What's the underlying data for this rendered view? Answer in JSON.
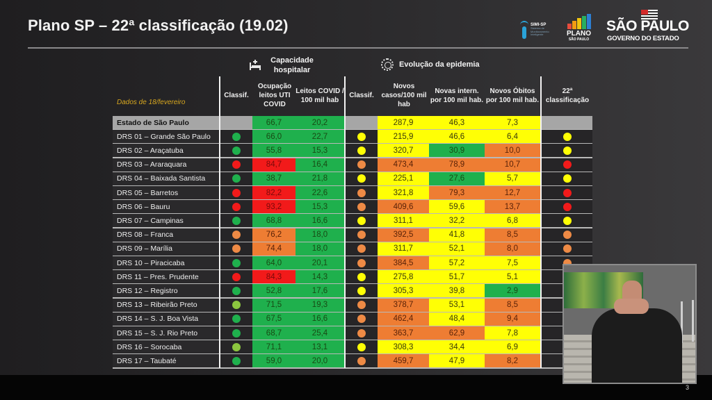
{
  "title": "Plano SP – 22ª classificação (19.02)",
  "logos": {
    "simi": {
      "title": "SIMI-SP",
      "subtitle": "Sistema de Monitoramento Inteligente"
    },
    "plano": {
      "title": "PLANO",
      "subtitle": "SÃO PAULO"
    },
    "sp": {
      "title": "SÃO PAULO",
      "subtitle": "GOVERNO DO ESTADO"
    }
  },
  "sections": {
    "hospital": {
      "label": "Capacidade hospitalar",
      "icon": "hospital-bed-icon"
    },
    "epidemic": {
      "label": "Evolução da epidemia",
      "icon": "virus-icon"
    }
  },
  "dados_label": "Dados de 18/fevereiro",
  "columns": {
    "classif_hosp": "Classif.",
    "ocupacao": "Ocupação leitos UTI COVID",
    "leitos": "Leitos COVID / 100 mil hab",
    "classif_epi": "Classif.",
    "casos": "Novos casos/100 mil hab",
    "intern": "Novas intern. por 100 mil hab.",
    "obitos": "Novos Óbitos por 100 mil hab.",
    "final": "22ª classificação"
  },
  "colors": {
    "green": "#20b04e",
    "red": "#f01616",
    "orange": "#ee7d33",
    "light_green": "#8dc63f",
    "yellow": "#ffff05",
    "grey": "#a6a6a6"
  },
  "rows": [
    {
      "name": "Estado de São Paulo",
      "state": true,
      "c1": "",
      "ocup": "66,7",
      "ocup_c": "green",
      "leit": "20,2",
      "leit_c": "green",
      "c2": "",
      "casos": "287,9",
      "casos_c": "yellow",
      "int": "46,3",
      "int_c": "yellow",
      "obi": "7,3",
      "obi_c": "yellow",
      "fin": ""
    },
    {
      "name": "DRS 01 – Grande São Paulo",
      "c1": "green",
      "ocup": "66,0",
      "ocup_c": "green",
      "leit": "22,7",
      "leit_c": "green",
      "c2": "yellow",
      "casos": "215,9",
      "casos_c": "yellow",
      "int": "46,6",
      "int_c": "yellow",
      "obi": "6,4",
      "obi_c": "yellow",
      "fin": "yellow"
    },
    {
      "name": "DRS 02 – Araçatuba",
      "c1": "green",
      "ocup": "55,8",
      "ocup_c": "green",
      "leit": "15,3",
      "leit_c": "green",
      "c2": "yellow",
      "casos": "320,7",
      "casos_c": "yellow",
      "int": "30,9",
      "int_c": "green",
      "obi": "10,0",
      "obi_c": "orange",
      "fin": "yellow"
    },
    {
      "name": "DRS 03 – Araraquara",
      "c1": "red",
      "ocup": "84,7",
      "ocup_c": "red",
      "leit": "16,4",
      "leit_c": "green",
      "c2": "orange",
      "casos": "473,4",
      "casos_c": "orange",
      "int": "78,9",
      "int_c": "orange",
      "obi": "10,7",
      "obi_c": "orange",
      "fin": "red"
    },
    {
      "name": "DRS 04 – Baixada Santista",
      "c1": "green",
      "ocup": "38,7",
      "ocup_c": "green",
      "leit": "21,8",
      "leit_c": "green",
      "c2": "yellow",
      "casos": "225,1",
      "casos_c": "yellow",
      "int": "27,6",
      "int_c": "green",
      "obi": "5,7",
      "obi_c": "yellow",
      "fin": "yellow"
    },
    {
      "name": "DRS 05 – Barretos",
      "c1": "red",
      "ocup": "82,2",
      "ocup_c": "red",
      "leit": "22,6",
      "leit_c": "green",
      "c2": "orange",
      "casos": "321,8",
      "casos_c": "yellow",
      "int": "79,3",
      "int_c": "orange",
      "obi": "12,7",
      "obi_c": "orange",
      "fin": "red"
    },
    {
      "name": "DRS 06 – Bauru",
      "c1": "red",
      "ocup": "93,2",
      "ocup_c": "red",
      "leit": "15,3",
      "leit_c": "green",
      "c2": "orange",
      "casos": "409,6",
      "casos_c": "orange",
      "int": "59,6",
      "int_c": "yellow",
      "obi": "13,7",
      "obi_c": "orange",
      "fin": "red"
    },
    {
      "name": "DRS 07 – Campinas",
      "c1": "green",
      "ocup": "68,8",
      "ocup_c": "green",
      "leit": "16,6",
      "leit_c": "green",
      "c2": "yellow",
      "casos": "311,1",
      "casos_c": "yellow",
      "int": "32,2",
      "int_c": "yellow",
      "obi": "6,8",
      "obi_c": "yellow",
      "fin": "yellow"
    },
    {
      "name": "DRS 08 – Franca",
      "c1": "orange",
      "ocup": "76,2",
      "ocup_c": "orange",
      "leit": "18,0",
      "leit_c": "green",
      "c2": "orange",
      "casos": "392,5",
      "casos_c": "orange",
      "int": "41,8",
      "int_c": "yellow",
      "obi": "8,5",
      "obi_c": "orange",
      "fin": "orange"
    },
    {
      "name": "DRS 09 – Marília",
      "c1": "orange",
      "ocup": "74,4",
      "ocup_c": "orange",
      "leit": "18,0",
      "leit_c": "green",
      "c2": "orange",
      "casos": "311,7",
      "casos_c": "yellow",
      "int": "52,1",
      "int_c": "yellow",
      "obi": "8,0",
      "obi_c": "orange",
      "fin": "orange"
    },
    {
      "name": "DRS 10 – Piracicaba",
      "c1": "green",
      "ocup": "64,0",
      "ocup_c": "green",
      "leit": "20,1",
      "leit_c": "green",
      "c2": "orange",
      "casos": "384,5",
      "casos_c": "orange",
      "int": "57,2",
      "int_c": "yellow",
      "obi": "7,5",
      "obi_c": "yellow",
      "fin": "orange"
    },
    {
      "name": "DRS 11 – Pres. Prudente",
      "c1": "red",
      "ocup": "84,3",
      "ocup_c": "red",
      "leit": "14,3",
      "leit_c": "green",
      "c2": "yellow",
      "casos": "275,8",
      "casos_c": "yellow",
      "int": "51,7",
      "int_c": "yellow",
      "obi": "5,1",
      "obi_c": "yellow",
      "fin": ""
    },
    {
      "name": "DRS 12 – Registro",
      "c1": "green",
      "ocup": "52,8",
      "ocup_c": "green",
      "leit": "17,6",
      "leit_c": "green",
      "c2": "yellow",
      "casos": "305,3",
      "casos_c": "yellow",
      "int": "39,8",
      "int_c": "yellow",
      "obi": "2,9",
      "obi_c": "green",
      "fin": ""
    },
    {
      "name": "DRS 13 – Ribeirão Preto",
      "c1": "light_green",
      "ocup": "71,5",
      "ocup_c": "green",
      "leit": "19,3",
      "leit_c": "green",
      "c2": "orange",
      "casos": "378,7",
      "casos_c": "orange",
      "int": "53,1",
      "int_c": "yellow",
      "obi": "8,5",
      "obi_c": "orange",
      "fin": ""
    },
    {
      "name": "DRS 14 – S. J. Boa Vista",
      "c1": "green",
      "ocup": "67,5",
      "ocup_c": "green",
      "leit": "16,6",
      "leit_c": "green",
      "c2": "orange",
      "casos": "462,4",
      "casos_c": "orange",
      "int": "48,4",
      "int_c": "yellow",
      "obi": "9,4",
      "obi_c": "orange",
      "fin": ""
    },
    {
      "name": "DRS 15 – S. J. Rio Preto",
      "c1": "green",
      "ocup": "68,7",
      "ocup_c": "green",
      "leit": "25,4",
      "leit_c": "green",
      "c2": "orange",
      "casos": "363,7",
      "casos_c": "orange",
      "int": "62,9",
      "int_c": "orange",
      "obi": "7,8",
      "obi_c": "yellow",
      "fin": ""
    },
    {
      "name": "DRS 16 – Sorocaba",
      "c1": "light_green",
      "ocup": "71,1",
      "ocup_c": "green",
      "leit": "13,1",
      "leit_c": "green",
      "c2": "yellow",
      "casos": "308,3",
      "casos_c": "yellow",
      "int": "34,4",
      "int_c": "yellow",
      "obi": "6,9",
      "obi_c": "yellow",
      "fin": ""
    },
    {
      "name": "DRS 17 – Taubaté",
      "c1": "green",
      "ocup": "59,0",
      "ocup_c": "green",
      "leit": "20,0",
      "leit_c": "green",
      "c2": "orange",
      "casos": "459,7",
      "casos_c": "orange",
      "int": "47,9",
      "int_c": "yellow",
      "obi": "8,2",
      "obi_c": "orange",
      "fin": ""
    }
  ],
  "page_number": "3"
}
